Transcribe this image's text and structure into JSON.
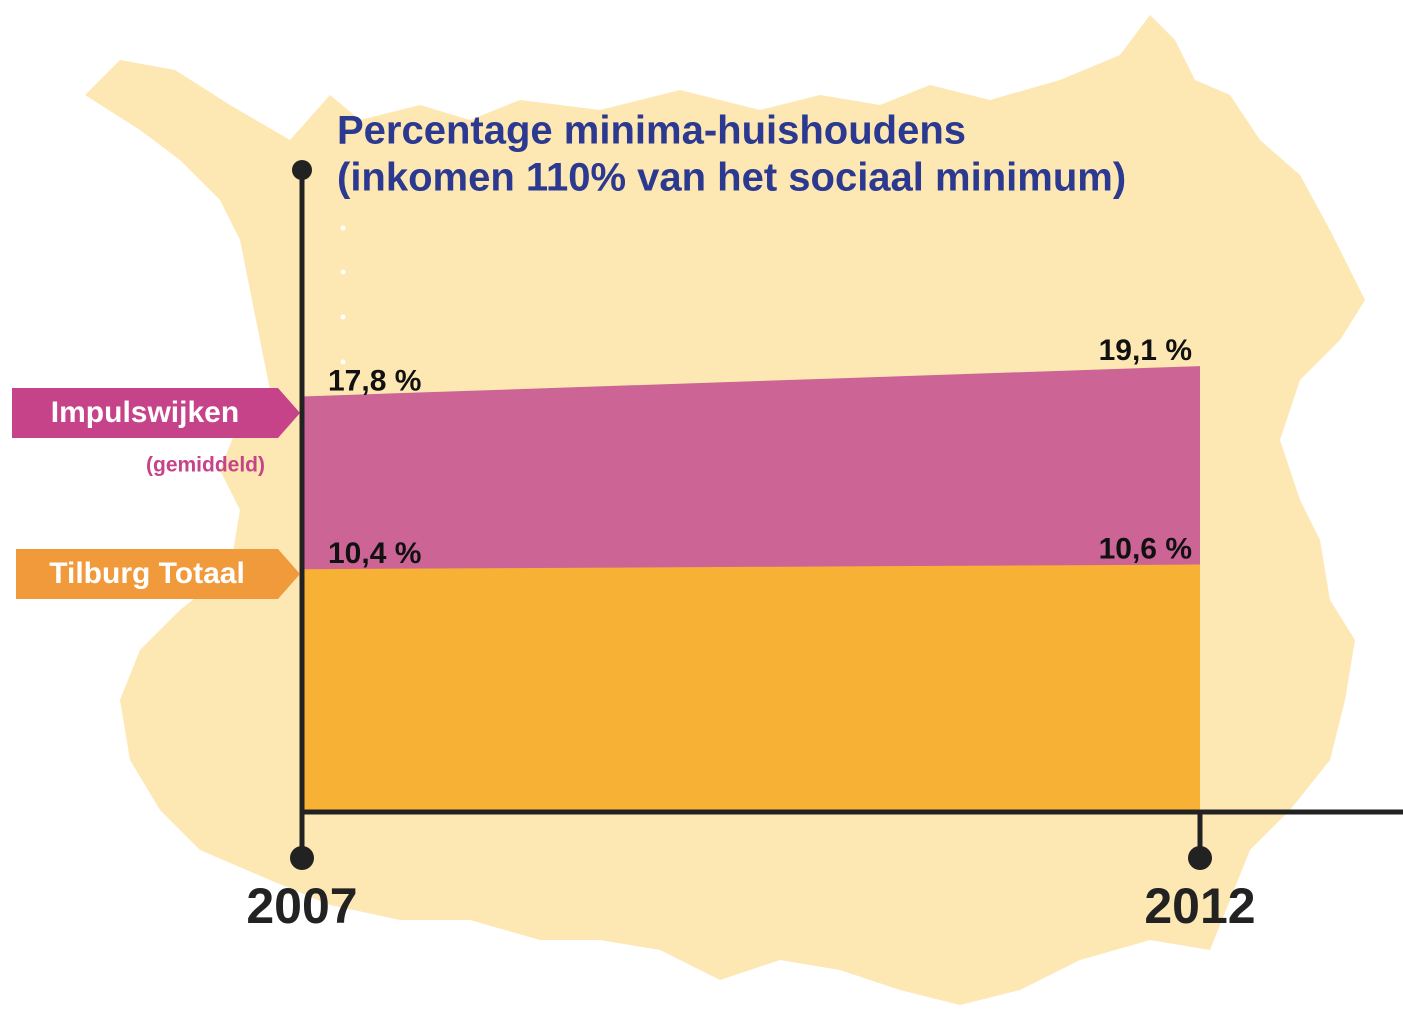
{
  "chart_data": {
    "type": "area",
    "title": [
      "Percentage minima-huishoudens",
      "(inkomen 110% van het sociaal minimum)"
    ],
    "categories": [
      "2007",
      "2012"
    ],
    "series": [
      {
        "name": "Impulswijken",
        "color": "#cc6496",
        "values": [
          17.8,
          19.1
        ],
        "value_labels": [
          "17,8 %",
          "19,1 %"
        ]
      },
      {
        "name": "Tilburg Totaal",
        "color": "#f7b134",
        "values": [
          10.4,
          10.6
        ],
        "value_labels": [
          "10,4 %",
          "10,6 %"
        ]
      }
    ],
    "annotations": [
      "(gemiddeld)"
    ],
    "legend_colors": [
      "#c6438a",
      "#f19a3c"
    ],
    "ylim": [
      0,
      27.5
    ]
  }
}
